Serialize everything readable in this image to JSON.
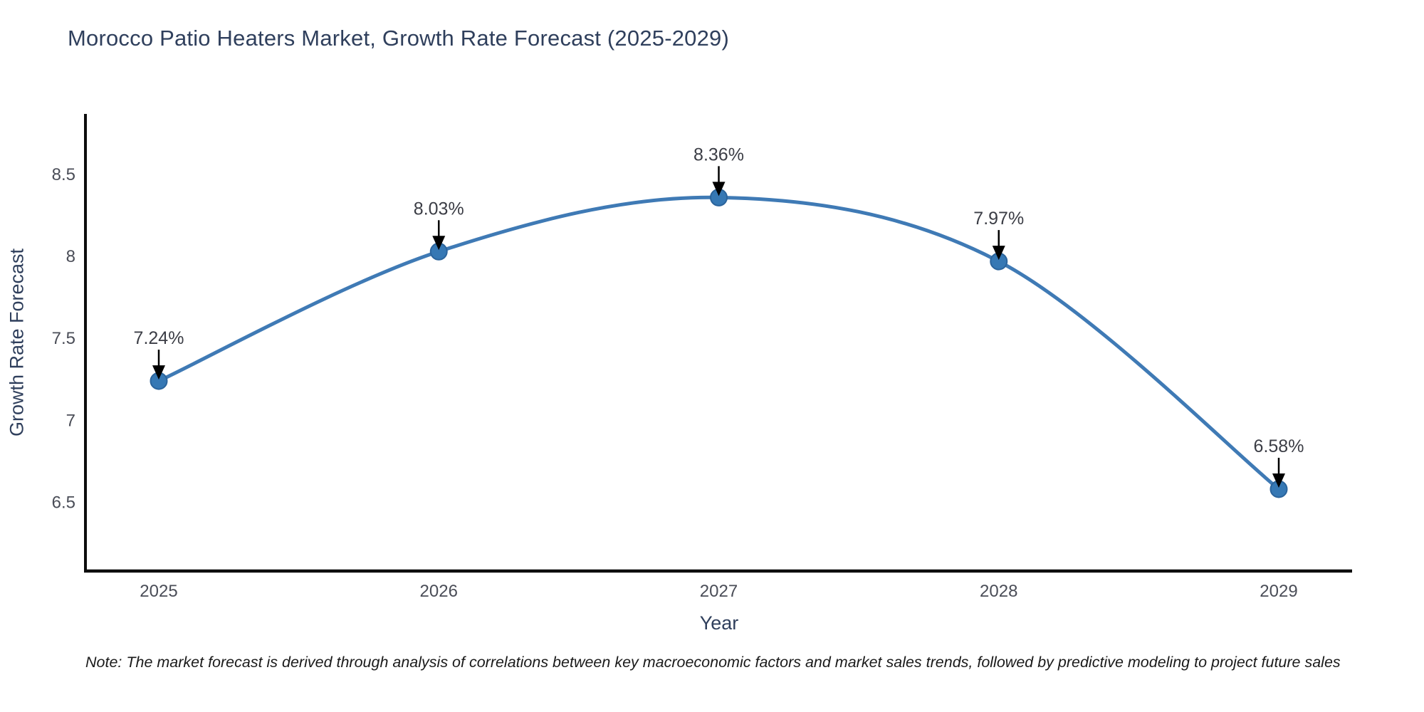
{
  "chart_data": {
    "type": "line",
    "title": "Morocco Patio Heaters Market, Growth Rate Forecast (2025-2029)",
    "xlabel": "Year",
    "ylabel": "Growth Rate Forecast",
    "x": [
      2025,
      2026,
      2027,
      2028,
      2029
    ],
    "series": [
      {
        "name": "Growth Rate Forecast",
        "values": [
          7.24,
          8.03,
          8.36,
          7.97,
          6.58
        ]
      }
    ],
    "point_labels": [
      "7.24%",
      "8.03%",
      "8.36%",
      "7.97%",
      "6.58%"
    ],
    "xticks": [
      "2025",
      "2026",
      "2027",
      "2028",
      "2029"
    ],
    "yticks": [
      6.5,
      7,
      7.5,
      8,
      8.5
    ],
    "ylim": [
      6.08,
      8.87
    ],
    "grid": false,
    "legend": "none",
    "line_style": "spline",
    "colors": {
      "line": "#3f7ab5",
      "marker_fill": "#3678b4",
      "marker_edge": "#2b649c",
      "axis_line": "#0d0d0d",
      "annotation_text": "#3b3d45",
      "annotation_arrow": "#000000",
      "tick_label": "#4a4d57",
      "title_text": "#2f3f5c",
      "background": "#ffffff"
    }
  },
  "note": "Note: The market forecast is derived through analysis of correlations between key macroeconomic factors and market sales trends, followed by predictive modeling to project future sales"
}
